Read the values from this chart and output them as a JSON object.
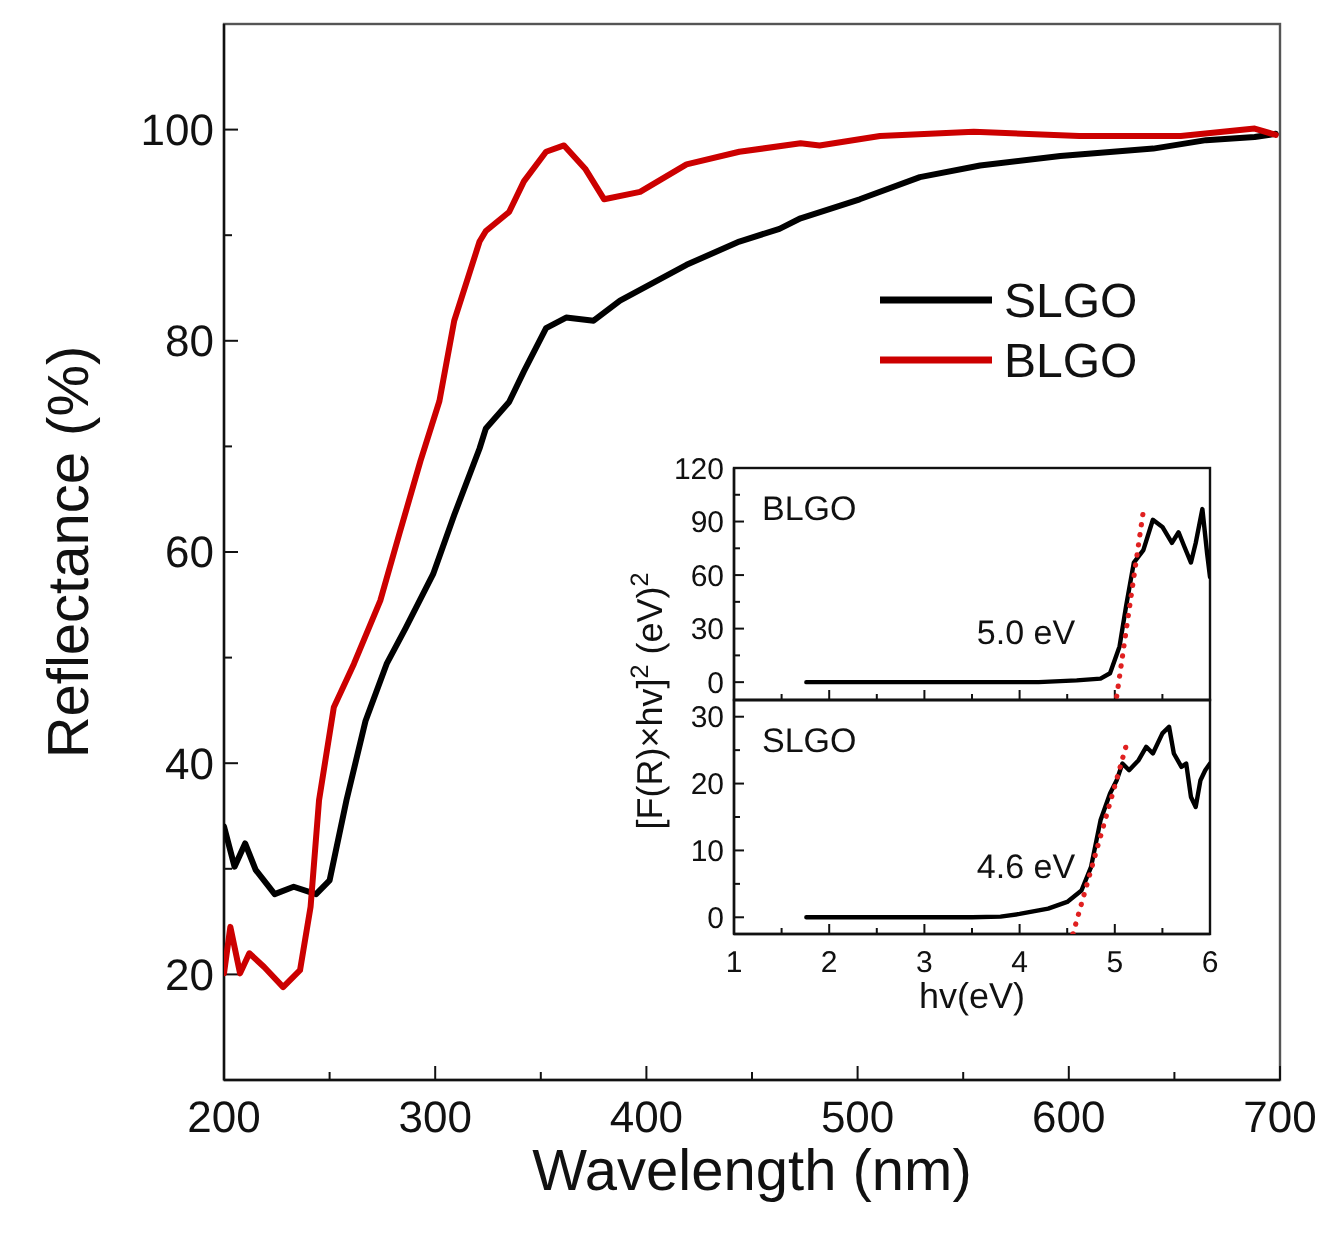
{
  "chart_data": [
    {
      "type": "line",
      "xlabel": "Wavelength (nm)",
      "ylabel": "Reflectance (%)",
      "xlim": [
        200,
        700
      ],
      "ylim": [
        10,
        110
      ],
      "xticks": [
        200,
        {
          "value": 250,
          "label": null
        },
        300,
        {
          "value": 350,
          "label": null
        },
        400,
        {
          "value": 450,
          "label": null
        },
        500,
        {
          "value": 550,
          "label": null
        },
        600,
        {
          "value": 650,
          "label": null
        },
        700
      ],
      "yticks": [
        20,
        {
          "value": 30,
          "label": null
        },
        40,
        {
          "value": 50,
          "label": null
        },
        60,
        {
          "value": 70,
          "label": null
        },
        80,
        {
          "value": 90,
          "label": null
        },
        100
      ],
      "legend": "right",
      "marker": "none",
      "line_style": "solid",
      "grid": false,
      "series": [
        {
          "name": "SLGO",
          "color": "#000000",
          "x": [
            200,
            205,
            210,
            215,
            224,
            233,
            243.6,
            250,
            258,
            267,
            277,
            286,
            299,
            309,
            321,
            324,
            335,
            342,
            352.5,
            362,
            375,
            387.5,
            419,
            444,
            463,
            473,
            501,
            529.5,
            558,
            596,
            640,
            665,
            688,
            698
          ],
          "values": [
            34.0,
            30.2,
            32.4,
            29.9,
            27.6,
            28.3,
            27.6,
            28.9,
            36.5,
            44.0,
            49.4,
            52.8,
            57.9,
            63.5,
            69.8,
            71.7,
            74.2,
            77.1,
            81.2,
            82.2,
            81.9,
            83.8,
            87.2,
            89.4,
            90.6,
            91.6,
            93.4,
            95.5,
            96.6,
            97.5,
            98.2,
            99.0,
            99.3,
            99.6
          ]
        },
        {
          "name": "BLGO",
          "color": "#cc0000",
          "x": [
            200,
            203,
            207.6,
            212,
            219,
            228,
            236,
            241,
            245,
            252,
            261.5,
            274,
            283,
            293,
            302,
            309,
            321,
            324,
            335,
            342,
            352.5,
            361,
            371,
            380,
            397,
            419,
            444,
            473,
            482,
            510.6,
            555,
            605,
            653,
            688,
            698
          ],
          "values": [
            20.1,
            24.5,
            20.1,
            22.0,
            20.7,
            18.8,
            20.4,
            26.4,
            36.5,
            45.3,
            49.4,
            55.4,
            61.7,
            68.6,
            74.3,
            81.9,
            89.4,
            90.4,
            92.2,
            95.1,
            97.9,
            98.5,
            96.3,
            93.4,
            94.1,
            96.7,
            97.9,
            98.7,
            98.5,
            99.4,
            99.8,
            99.4,
            99.4,
            100.1,
            99.5
          ]
        }
      ]
    },
    {
      "type": "line",
      "ylabel": "[F(R)×hv]$^{2}$ (eV)$^{2}$",
      "xlim": [
        1,
        6
      ],
      "ylim": [
        -10,
        120
      ],
      "xticks": [
        1,
        {
          "value": 1.5,
          "label": null
        },
        2,
        {
          "value": 2.5,
          "label": null
        },
        3,
        {
          "value": 3.5,
          "label": null
        },
        4,
        {
          "value": 4.5,
          "label": null
        },
        5,
        {
          "value": 5.5,
          "label": null
        },
        6
      ],
      "yticks": [
        0,
        {
          "value": 15,
          "label": null
        },
        30,
        {
          "value": 45,
          "label": null
        },
        60,
        {
          "value": 75,
          "label": null
        },
        90,
        {
          "value": 105,
          "label": null
        },
        120
      ],
      "tick_labels": "y",
      "marker": "none",
      "grid": false,
      "annotations": [
        "BLGO",
        "5.0 eV"
      ],
      "series": [
        {
          "color": "#000000",
          "x": [
            1.76,
            2.5,
            3.5,
            4.2,
            4.6,
            4.85,
            4.95,
            5.05,
            5.12,
            5.2,
            5.3,
            5.4,
            5.5,
            5.6,
            5.67,
            5.73,
            5.8,
            5.85,
            5.92,
            5.97,
            6.0
          ],
          "values": [
            0,
            0,
            0,
            0,
            1,
            2,
            5,
            20,
            43,
            67,
            74,
            91,
            87,
            78,
            84,
            76,
            67,
            78,
            97,
            72,
            59
          ]
        },
        {
          "type": "line",
          "line_style": "dotted",
          "color": "#e02020",
          "x": [
            5.02,
            5.3
          ],
          "values": [
            -8,
            96
          ]
        }
      ]
    },
    {
      "type": "line",
      "xlabel": "hv(eV)",
      "xlim": [
        1,
        6
      ],
      "ylim": [
        -2.5,
        32.5
      ],
      "xticks": [
        1,
        {
          "value": 1.5,
          "label": null
        },
        2,
        {
          "value": 2.5,
          "label": null
        },
        3,
        {
          "value": 3.5,
          "label": null
        },
        4,
        {
          "value": 4.5,
          "label": null
        },
        5,
        {
          "value": 5.5,
          "label": null
        },
        6
      ],
      "yticks": [
        0,
        {
          "value": 5,
          "label": null
        },
        10,
        {
          "value": 15,
          "label": null
        },
        20,
        {
          "value": 25,
          "label": null
        },
        30
      ],
      "marker": "none",
      "grid": false,
      "annotations": [
        "SLGO",
        "4.6 eV"
      ],
      "series": [
        {
          "color": "#000000",
          "x": [
            1.76,
            2.5,
            3.5,
            3.8,
            4.0,
            4.3,
            4.5,
            4.65,
            4.75,
            4.85,
            4.95,
            5.02,
            5.08,
            5.15,
            5.25,
            5.33,
            5.4,
            5.5,
            5.57,
            5.62,
            5.7,
            5.75,
            5.8,
            5.85,
            5.9,
            5.95,
            6.0
          ],
          "values": [
            0,
            0,
            0,
            0.1,
            0.5,
            1.3,
            2.3,
            4,
            7.5,
            14.5,
            18.5,
            20.5,
            23,
            22,
            23.5,
            25.5,
            24.5,
            27.5,
            28.5,
            24.5,
            22.5,
            23,
            18,
            16.5,
            20.5,
            22,
            23
          ]
        },
        {
          "type": "line",
          "line_style": "dotted",
          "color": "#e02020",
          "x": [
            4.56,
            5.14
          ],
          "values": [
            -2.5,
            26.7
          ]
        }
      ]
    }
  ]
}
